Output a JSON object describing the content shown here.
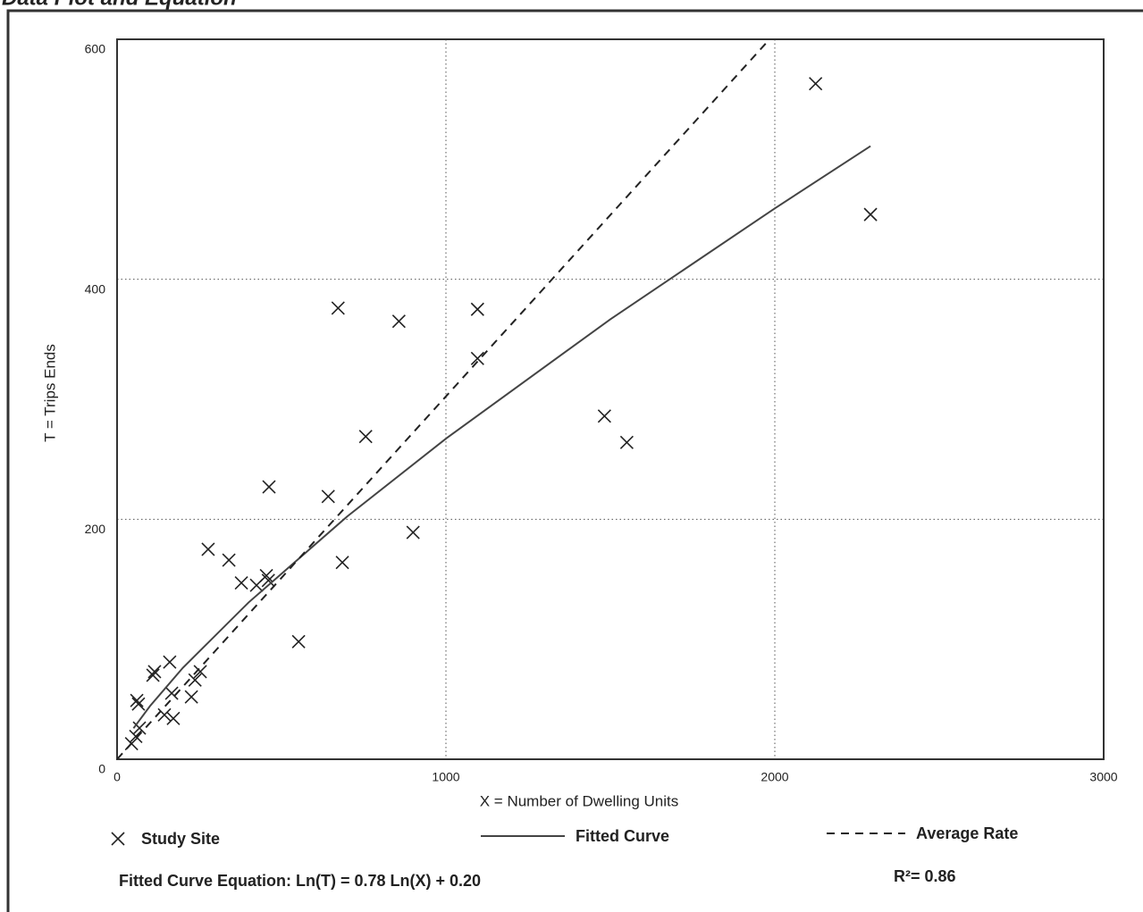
{
  "chart_data": {
    "type": "scatter",
    "title": "Data Plot and Equation",
    "xlabel": "X = Number of Dwelling Units",
    "ylabel": "T = Trips Ends",
    "xlim": [
      0,
      3000
    ],
    "ylim": [
      0,
      600
    ],
    "xticks": [
      0,
      1000,
      2000,
      3000
    ],
    "yticks": [
      0,
      200,
      400,
      600
    ],
    "grid": true,
    "series": [
      {
        "name": "Study Site",
        "style": "markers",
        "color": "#222222",
        "x": [
          44,
          57,
          68,
          60,
          65,
          109,
          114,
          160,
          144,
          166,
          171,
          226,
          237,
          253,
          277,
          340,
          378,
          424,
          454,
          460,
          462,
          552,
          642,
          672,
          685,
          756,
          857,
          900,
          1096,
          1096,
          1482,
          1550,
          2124,
          2291
        ],
        "values": [
          13,
          19,
          26,
          49,
          46,
          70,
          73,
          81,
          37,
          55,
          34,
          52,
          66,
          73,
          175,
          166,
          147,
          145,
          153,
          149,
          227,
          98,
          219,
          376,
          164,
          269,
          365,
          189,
          375,
          334,
          286,
          264,
          563,
          454
        ]
      },
      {
        "name": "Fitted Curve",
        "style": "solid",
        "color": "#444444",
        "x": [
          50,
          100,
          200,
          400,
          700,
          1000,
          1500,
          2000,
          2291
        ],
        "values": [
          25.8,
          44.3,
          76.2,
          130.7,
          202.4,
          267.2,
          366.7,
          459.1,
          511
        ]
      },
      {
        "name": "Average Rate",
        "style": "dashed",
        "color": "#222222",
        "x": [
          0,
          1984
        ],
        "values": [
          0,
          600
        ]
      }
    ],
    "equation": "Fitted Curve Equation: Ln(T) = 0.78 Ln(X) + 0.20",
    "r_squared": "R²= 0.86"
  }
}
